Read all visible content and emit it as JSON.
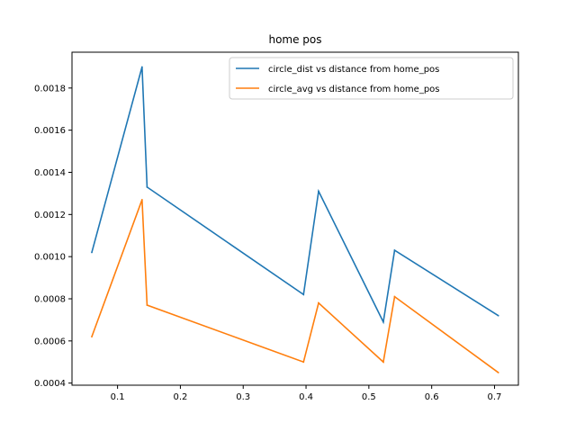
{
  "chart_data": {
    "type": "line",
    "title": "home pos",
    "xlabel": "",
    "ylabel": "",
    "xlim": [
      0.0275,
      0.738
    ],
    "ylim": [
      0.00039,
      0.00197
    ],
    "x_ticks": [
      0.1,
      0.2,
      0.3,
      0.4,
      0.5,
      0.6,
      0.7
    ],
    "x_tick_labels": [
      "0.1",
      "0.2",
      "0.3",
      "0.4",
      "0.5",
      "0.6",
      "0.7"
    ],
    "y_ticks": [
      0.0004,
      0.0006,
      0.0008,
      0.001,
      0.0012,
      0.0014,
      0.0016,
      0.0018
    ],
    "y_tick_labels": [
      "0.0004",
      "0.0006",
      "0.0008",
      "0.0010",
      "0.0012",
      "0.0014",
      "0.0016",
      "0.0018"
    ],
    "grid": false,
    "legend_position": "top-right",
    "series": [
      {
        "name": "circle_dist vs distance from home_pos",
        "color": "#1f77b4",
        "x": [
          0.059,
          0.139,
          0.147,
          0.396,
          0.42,
          0.523,
          0.541,
          0.706
        ],
        "y": [
          0.00102,
          0.0019,
          0.00133,
          0.00082,
          0.00131,
          0.00069,
          0.00103,
          0.00072
        ]
      },
      {
        "name": "circle_avg vs distance from home_pos",
        "color": "#ff7f0e",
        "x": [
          0.059,
          0.139,
          0.147,
          0.396,
          0.42,
          0.523,
          0.541,
          0.706
        ],
        "y": [
          0.00062,
          0.00127,
          0.00077,
          0.0005,
          0.00078,
          0.0005,
          0.00081,
          0.00045
        ]
      }
    ]
  }
}
